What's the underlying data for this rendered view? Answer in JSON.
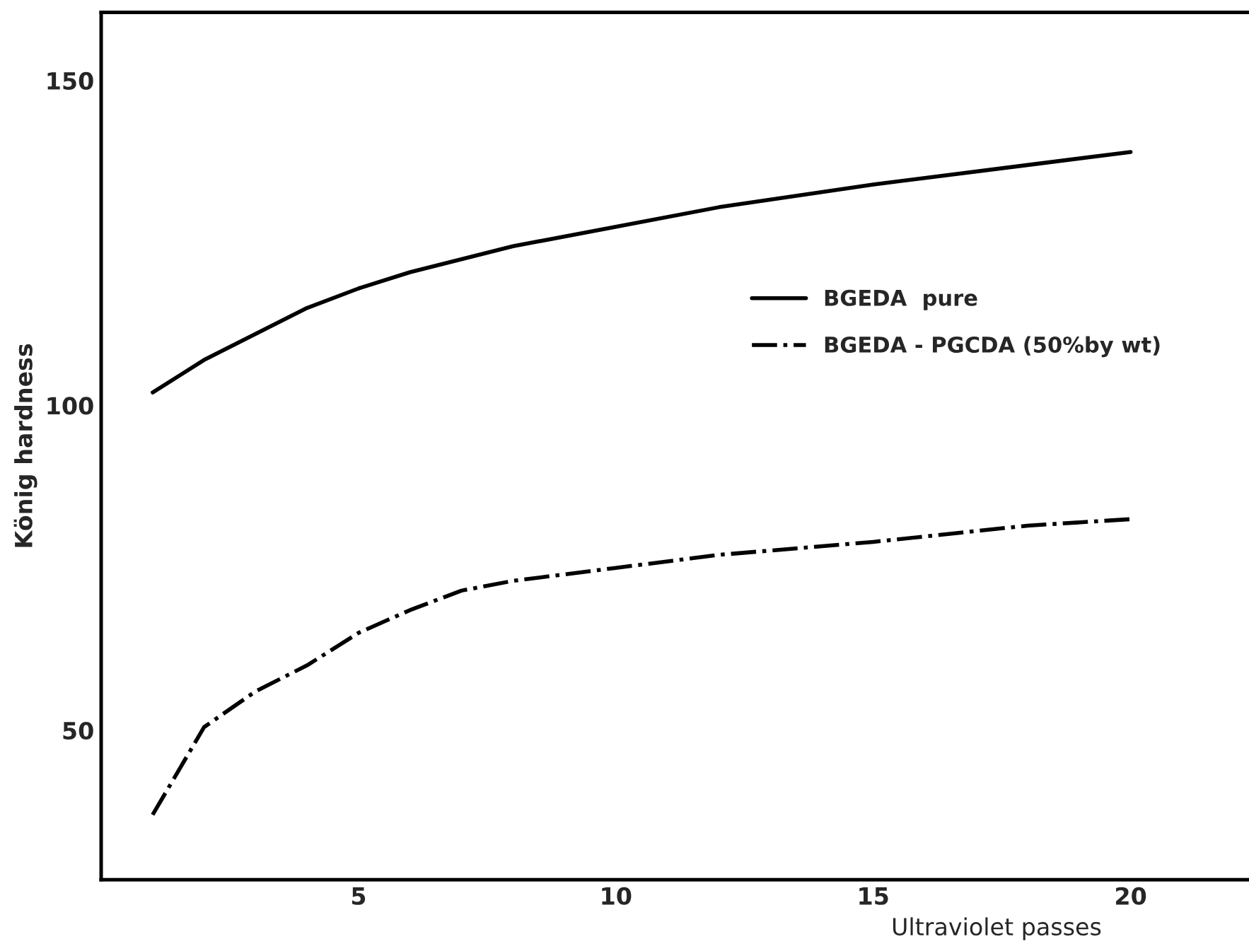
{
  "chart_data": {
    "type": "line",
    "xlabel": "Ultraviolet passes",
    "ylabel": "König hardness",
    "xlim": [
      0,
      22.3
    ],
    "ylim": [
      27,
      160.5
    ],
    "xticks": [
      5,
      10,
      15,
      20
    ],
    "yticks": [
      50,
      100,
      150
    ],
    "grid": false,
    "legend": "right",
    "marker": "none",
    "series": [
      {
        "name": "BGEDA  pure",
        "color": "#000000",
        "line_style": "solid",
        "x": [
          1,
          2,
          3,
          4,
          5,
          6,
          8,
          10,
          12,
          15,
          18,
          20
        ],
        "values": [
          102,
          107,
          111,
          115,
          118,
          120.5,
          124.5,
          127.5,
          130.5,
          134,
          137,
          139
        ]
      },
      {
        "name": "BGEDA - PGCDA (50%by wt)",
        "color": "#000000",
        "line_style": "dashdot",
        "x": [
          1,
          2,
          3,
          4,
          5,
          6,
          7,
          8,
          10,
          12,
          15,
          18,
          20
        ],
        "values": [
          37,
          50.5,
          56,
          60,
          65,
          68.5,
          71.5,
          73,
          75,
          77,
          79,
          81.5,
          82.5
        ]
      }
    ]
  }
}
